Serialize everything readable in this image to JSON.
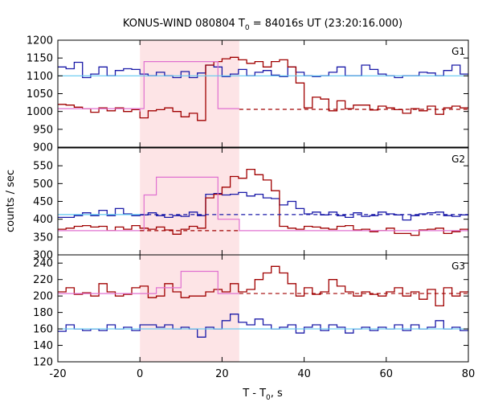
{
  "chart_data": {
    "type": "line",
    "title": "KONUS-WIND 080804 T",
    "title_sub": "0",
    "title_rest": " = 84016s UT (23:20:16.000)",
    "xlabel": "T - T",
    "xlabel_sub": "0",
    "xlabel_rest": ", s",
    "ylabel": "counts / sec",
    "xlim": [
      -20,
      80
    ],
    "xticks": [
      -20,
      0,
      20,
      40,
      60,
      80
    ],
    "shaded_interval": [
      0,
      24.2
    ],
    "colors": {
      "red": "#a00000",
      "blue": "#1a1aa8",
      "pink": "#e070d0",
      "cyan": "#60c8f0",
      "shade": "#fde4e6"
    },
    "panels": [
      {
        "label": "G1",
        "ylim": [
          900,
          1200
        ],
        "yticks": [
          900,
          950,
          1000,
          1050,
          1100,
          1150,
          1200
        ],
        "show_bottom_tick": true,
        "series": [
          {
            "color": "blue",
            "start": -20,
            "step": 2,
            "values": [
              1125,
              1120,
              1138,
              1095,
              1105,
              1125,
              1100,
              1115,
              1120,
              1118,
              1105,
              1100,
              1110,
              1100,
              1095,
              1112,
              1095,
              1108,
              1130,
              1125,
              1098,
              1105,
              1118,
              1100,
              1110,
              1115,
              1102,
              1098,
              1125,
              1110,
              1100,
              1098,
              1100,
              1110,
              1125,
              1100,
              1100,
              1130,
              1118,
              1105,
              1100,
              1095,
              1100,
              1100,
              1110,
              1108,
              1100,
              1115,
              1130,
              1105
            ]
          },
          {
            "color": "red",
            "start": -20,
            "step": 2,
            "values": [
              1020,
              1018,
              1012,
              1008,
              998,
              1010,
              1002,
              1010,
              1000,
              1005,
              982,
              1002,
              1005,
              1010,
              1000,
              985,
              995,
              975,
              1130,
              1140,
              1148,
              1152,
              1145,
              1135,
              1140,
              1125,
              1140,
              1145,
              1125,
              1080,
              1010,
              1040,
              1035,
              1002,
              1030,
              1008,
              1018,
              1018,
              1004,
              1015,
              1010,
              1005,
              995,
              1008,
              1002,
              1015,
              992,
              1010,
              1015,
              1010
            ]
          },
          {
            "color": "pink",
            "kind": "step",
            "points": [
              [
                -20,
                1008
              ],
              [
                0,
                1008
              ],
              [
                0,
                1000
              ],
              [
                0,
                1008
              ],
              [
                1,
                1008
              ],
              [
                1,
                1140
              ],
              [
                4,
                1140
              ],
              [
                4,
                1140
              ],
              [
                19,
                1140
              ],
              [
                19,
                1008
              ],
              [
                24.2,
                1008
              ]
            ]
          },
          {
            "color": "red",
            "kind": "hline",
            "value": 1006,
            "dashed": true,
            "from": 24.2,
            "to": 80
          },
          {
            "color": "cyan",
            "kind": "hline",
            "value": 1100,
            "dashed": false,
            "from": -20,
            "to": 80
          }
        ]
      },
      {
        "label": "G2",
        "ylim": [
          300,
          600
        ],
        "yticks": [
          300,
          350,
          400,
          450,
          500,
          550
        ],
        "show_bottom_tick": false,
        "series": [
          {
            "color": "blue",
            "start": -20,
            "step": 2,
            "values": [
              405,
              405,
              410,
              418,
              410,
              425,
              410,
              430,
              415,
              410,
              412,
              418,
              410,
              405,
              410,
              408,
              420,
              410,
              470,
              472,
              468,
              470,
              475,
              465,
              470,
              460,
              458,
              440,
              450,
              430,
              415,
              420,
              412,
              420,
              410,
              405,
              418,
              408,
              410,
              420,
              415,
              412,
              398,
              410,
              415,
              418,
              420,
              410,
              408,
              412
            ]
          },
          {
            "color": "red",
            "start": -20,
            "step": 2,
            "values": [
              372,
              375,
              380,
              382,
              378,
              380,
              368,
              378,
              372,
              382,
              375,
              372,
              378,
              370,
              358,
              372,
              380,
              375,
              460,
              470,
              490,
              520,
              515,
              540,
              525,
              510,
              480,
              380,
              375,
              372,
              380,
              378,
              375,
              372,
              380,
              382,
              370,
              372,
              365,
              368,
              375,
              360,
              360,
              355,
              370,
              372,
              375,
              360,
              365,
              372
            ]
          },
          {
            "color": "pink",
            "kind": "step",
            "points": [
              [
                -20,
                368
              ],
              [
                1,
                368
              ],
              [
                1,
                468
              ],
              [
                4,
                468
              ],
              [
                4,
                518
              ],
              [
                19,
                518
              ],
              [
                19,
                400
              ],
              [
                24.2,
                400
              ],
              [
                24.2,
                368
              ],
              [
                80,
                368
              ]
            ]
          },
          {
            "color": "red",
            "kind": "hline",
            "value": 368,
            "dashed": true,
            "from": 0,
            "to": 24.2
          },
          {
            "color": "blue",
            "kind": "hline",
            "value": 413,
            "dashed": true,
            "from": 0,
            "to": 80
          },
          {
            "color": "cyan",
            "kind": "hline",
            "value": 413,
            "dashed": false,
            "from": -20,
            "to": 0
          }
        ]
      },
      {
        "label": "G3",
        "ylim": [
          120,
          250
        ],
        "yticks": [
          120,
          140,
          160,
          180,
          200,
          220,
          240
        ],
        "show_bottom_tick": false,
        "series": [
          {
            "color": "blue",
            "start": -20,
            "step": 2,
            "values": [
              157,
              165,
              160,
              158,
              160,
              158,
              165,
              160,
              162,
              158,
              165,
              165,
              162,
              165,
              160,
              162,
              160,
              150,
              162,
              160,
              170,
              178,
              168,
              165,
              172,
              165,
              160,
              162,
              165,
              155,
              162,
              165,
              158,
              165,
              162,
              155,
              160,
              162,
              158,
              162,
              160,
              165,
              158,
              165,
              160,
              162,
              170,
              160,
              162,
              158
            ]
          },
          {
            "color": "red",
            "start": -20,
            "step": 2,
            "values": [
              205,
              210,
              202,
              204,
              200,
              215,
              205,
              200,
              202,
              210,
              212,
              198,
              200,
              215,
              205,
              198,
              200,
              200,
              205,
              208,
              205,
              215,
              205,
              208,
              220,
              228,
              236,
              228,
              215,
              200,
              210,
              202,
              205,
              220,
              212,
              205,
              200,
              205,
              202,
              200,
              205,
              210,
              200,
              205,
              196,
              208,
              188,
              210,
              200,
              205
            ]
          },
          {
            "color": "pink",
            "kind": "step",
            "points": [
              [
                -20,
                203
              ],
              [
                1,
                203
              ],
              [
                1,
                203
              ],
              [
                4,
                203
              ],
              [
                4,
                210
              ],
              [
                10,
                210
              ],
              [
                10,
                230
              ],
              [
                17,
                230
              ],
              [
                17,
                230
              ],
              [
                19,
                230
              ],
              [
                19,
                203
              ],
              [
                24.2,
                203
              ]
            ]
          },
          {
            "color": "red",
            "kind": "hline",
            "value": 203,
            "dashed": true,
            "from": 24.2,
            "to": 80
          },
          {
            "color": "cyan",
            "kind": "hline",
            "value": 160,
            "dashed": false,
            "from": -20,
            "to": 80
          }
        ]
      }
    ]
  }
}
